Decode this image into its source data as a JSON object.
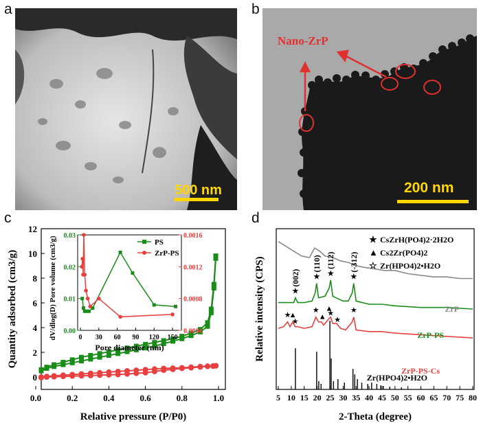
{
  "panels": {
    "a": {
      "letter": "a",
      "scale_label": "500 nm"
    },
    "b": {
      "letter": "b",
      "scale_label": "200 nm",
      "annotation": "Nano-ZrP"
    },
    "c": {
      "letter": "c",
      "chart_data": {
        "type": "line",
        "xlabel": "Relative pressure (P/P0)",
        "ylabel": "Quantity adsorbed (cm3/g)",
        "xlim": [
          0.0,
          1.0
        ],
        "ylim": [
          -1,
          12
        ],
        "x_ticks": [
          "0.0",
          "0.2",
          "0.4",
          "0.6",
          "0.8",
          "1.0"
        ],
        "y_ticks": [
          "0",
          "2",
          "4",
          "6",
          "8",
          "10",
          "12"
        ],
        "series": [
          {
            "name": "PS",
            "color": "#1a8c1a",
            "marker": "square",
            "x": [
              0.03,
              0.06,
              0.1,
              0.15,
              0.2,
              0.25,
              0.3,
              0.35,
              0.4,
              0.45,
              0.5,
              0.55,
              0.6,
              0.65,
              0.7,
              0.75,
              0.8,
              0.85,
              0.9,
              0.94,
              0.96,
              0.975,
              0.985
            ],
            "adsorption": [
              0.6,
              0.8,
              1.0,
              1.2,
              1.4,
              1.6,
              1.75,
              1.9,
              2.05,
              2.2,
              2.35,
              2.5,
              2.65,
              2.8,
              2.95,
              3.1,
              3.3,
              3.55,
              3.85,
              4.4,
              5.5,
              7.5,
              9.8
            ],
            "desorption": [
              0.5,
              0.7,
              0.85,
              1.0,
              1.15,
              1.3,
              1.45,
              1.6,
              1.75,
              1.9,
              2.05,
              2.2,
              2.35,
              2.5,
              2.7,
              2.9,
              3.1,
              3.35,
              3.65,
              4.1,
              5.2,
              7.2,
              9.6
            ]
          },
          {
            "name": "ZrP-PS",
            "color": "#e84040",
            "marker": "circle",
            "x": [
              0.03,
              0.06,
              0.1,
              0.15,
              0.2,
              0.25,
              0.3,
              0.35,
              0.4,
              0.45,
              0.5,
              0.55,
              0.6,
              0.65,
              0.7,
              0.75,
              0.8,
              0.85,
              0.9,
              0.94,
              0.97,
              0.985
            ],
            "adsorption": [
              0.0,
              0.05,
              0.1,
              0.15,
              0.2,
              0.25,
              0.3,
              0.35,
              0.4,
              0.45,
              0.5,
              0.55,
              0.6,
              0.65,
              0.7,
              0.72,
              0.75,
              0.8,
              0.85,
              0.88,
              0.9,
              0.92
            ],
            "desorption": [
              -0.05,
              0.0,
              0.02,
              0.05,
              0.08,
              0.1,
              0.12,
              0.15,
              0.18,
              0.2,
              0.25,
              0.3,
              0.35,
              0.45,
              0.55,
              0.62,
              0.7,
              0.75,
              0.82,
              0.86,
              0.88,
              0.9
            ]
          }
        ],
        "inset": {
          "xlabel": "Pore diameter (nm)",
          "ylabel_left": "dV/dlog(D) Pore volume (cm3/g)",
          "xlim": [
            0,
            160
          ],
          "ylim_left": [
            0.0,
            0.03
          ],
          "ylim_right": [
            0.0004,
            0.0016
          ],
          "x_ticks": [
            "0",
            "30",
            "60",
            "90",
            "120",
            "150"
          ],
          "y_ticks_left": [
            "0.00",
            "0.01",
            "0.02",
            "0.03"
          ],
          "y_ticks_right": [
            "0.0004",
            "0.0008",
            "0.0012",
            "0.0016"
          ],
          "series": [
            {
              "name": "PS",
              "color": "#1a8c1a",
              "axis": "left",
              "x": [
                3,
                5,
                7,
                10,
                14,
                20,
                65,
                85,
                120,
                155
              ],
              "y": [
                0.01,
                0.007,
                0.006,
                0.006,
                0.006,
                0.007,
                0.0245,
                0.018,
                0.008,
                0.0075
              ]
            },
            {
              "name": "ZrP-PS",
              "color": "#e84040",
              "axis": "right",
              "x": [
                2.5,
                3.5,
                4.5,
                5.5,
                7,
                9,
                12,
                16,
                30,
                65,
                150
              ],
              "y": [
                0.0012,
                0.0013,
                0.0011,
                0.0016,
                0.0011,
                0.0009,
                0.0008,
                0.0007,
                0.0008,
                0.00057,
                0.0006
              ]
            }
          ]
        }
      }
    },
    "d": {
      "letter": "d",
      "chart_data": {
        "type": "line",
        "xlabel": "2-Theta (degree)",
        "ylabel": "Relative intensity (CPS)",
        "xlim": [
          5,
          80
        ],
        "x_ticks": [
          "5",
          "10",
          "15",
          "20",
          "25",
          "30",
          "35",
          "40",
          "45",
          "50",
          "55",
          "60",
          "65",
          "70",
          "75",
          "80"
        ],
        "legend": [
          {
            "symbol": "★",
            "text": "CsZrH(PO4)2·2H2O"
          },
          {
            "symbol": "▲",
            "text": "Cs2Zr(PO4)2"
          },
          {
            "symbol": "☆",
            "text": "Zr(HPO4)2•H2O"
          }
        ],
        "series": [
          {
            "name": "ZrP",
            "color": "#888888",
            "x": [
              5,
              8,
              11,
              14,
              17,
              19,
              21,
              23,
              26,
              29,
              32,
              35,
              38,
              42,
              46,
              50,
              55,
              60,
              65,
              70,
              75,
              80
            ],
            "y": [
              0.92,
              0.89,
              0.86,
              0.83,
              0.82,
              0.88,
              0.86,
              0.83,
              0.82,
              0.8,
              0.79,
              0.77,
              0.76,
              0.75,
              0.74,
              0.74,
              0.72,
              0.71,
              0.7,
              0.7,
              0.69,
              0.69
            ]
          },
          {
            "name": "ZrP-PS",
            "color": "#1a8c1a",
            "x": [
              5,
              8,
              11,
              11.6,
              12.5,
              15,
              18,
              19.2,
              19.8,
              20.5,
              23,
              24.6,
              25.2,
              26,
              30,
              32,
              33.5,
              34.1,
              35,
              40,
              45,
              50,
              60,
              70,
              80
            ],
            "y": [
              0.54,
              0.54,
              0.54,
              0.57,
              0.54,
              0.54,
              0.55,
              0.6,
              0.66,
              0.57,
              0.58,
              0.63,
              0.68,
              0.58,
              0.55,
              0.55,
              0.6,
              0.66,
              0.55,
              0.53,
              0.53,
              0.52,
              0.51,
              0.51,
              0.5
            ]
          },
          {
            "name": "ZrP-PS-Cs",
            "color": "#e84040",
            "x": [
              5,
              7,
              8.6,
              9.5,
              10.6,
              11.5,
              12.5,
              15,
              18,
              19.5,
              20.5,
              21.6,
              22.5,
              24.5,
              25.2,
              26,
              27.5,
              29,
              31,
              33.5,
              34.1,
              35,
              40,
              45,
              50,
              60,
              70,
              80
            ],
            "y": [
              0.38,
              0.39,
              0.42,
              0.39,
              0.42,
              0.39,
              0.39,
              0.38,
              0.39,
              0.45,
              0.42,
              0.42,
              0.4,
              0.44,
              0.45,
              0.41,
              0.41,
              0.38,
              0.37,
              0.42,
              0.45,
              0.37,
              0.36,
              0.36,
              0.35,
              0.34,
              0.33,
              0.32
            ]
          }
        ],
        "reference_sticks": {
          "name": "Zr(HPO4)2•H2O",
          "color": "#000000",
          "x": [
            11.6,
            19.8,
            20.6,
            21.5,
            24.9,
            25.4,
            26.3,
            28.0,
            30.5,
            33.8,
            34.5,
            35.5,
            37.2,
            39.5,
            41.0,
            43.0,
            44.5,
            45.5,
            48.0,
            52.5
          ],
          "h": [
            0.6,
            0.55,
            0.12,
            0.08,
            1.0,
            0.45,
            0.12,
            0.15,
            0.1,
            0.3,
            0.22,
            0.15,
            0.1,
            0.08,
            0.1,
            0.08,
            0.06,
            0.05,
            0.04,
            0.03
          ]
        },
        "peak_labels": [
          "(002)",
          "(110)",
          "(112)",
          "(-312)"
        ],
        "curve_labels": [
          "ZrP",
          "ZrP-PS",
          "ZrP-PS-Cs",
          "Zr(HPO4)2•H2O"
        ]
      }
    }
  }
}
